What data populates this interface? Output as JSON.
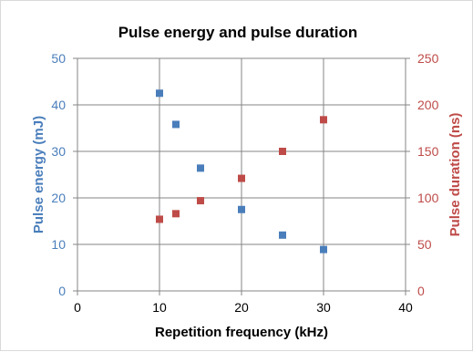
{
  "chart_data": {
    "type": "scatter",
    "title": "Pulse energy and pulse duration",
    "xlabel": "Repetition frequency (kHz)",
    "ylabel": "Pulse energy (mJ)",
    "y2label": "Pulse duration (ns)",
    "xlim": [
      0,
      40
    ],
    "ylim": [
      0,
      50
    ],
    "y2lim": [
      0,
      250
    ],
    "x_ticks": [
      "0",
      "10",
      "20",
      "30",
      "40"
    ],
    "y_ticks": [
      "0",
      "10",
      "20",
      "30",
      "40",
      "50"
    ],
    "y2_ticks": [
      "0",
      "50",
      "100",
      "150",
      "200",
      "250"
    ],
    "grid": true,
    "colors": {
      "energy": "#4a7ebb",
      "duration": "#be4b48"
    },
    "series": [
      {
        "axis": "left",
        "x": [
          10,
          12,
          15,
          20,
          25,
          30
        ],
        "y": [
          42.5,
          35.8,
          26.4,
          17.5,
          12.0,
          8.9
        ]
      },
      {
        "axis": "right",
        "x": [
          10,
          12,
          15,
          20,
          25,
          30
        ],
        "y": [
          77,
          83,
          97,
          121,
          150,
          184
        ]
      }
    ]
  }
}
